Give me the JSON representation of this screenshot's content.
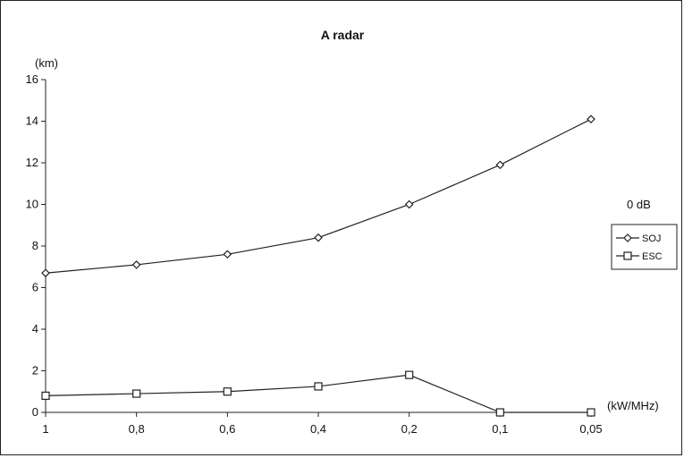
{
  "chart_data": {
    "type": "line",
    "title": "A radar",
    "ylabel": "(km)",
    "xlabel": "(kW/MHz)",
    "annotation": "0 dB",
    "categories": [
      "1",
      "0,8",
      "0,6",
      "0,4",
      "0,2",
      "0,1",
      "0,05"
    ],
    "ylim": [
      0,
      16
    ],
    "yticks": [
      "0",
      "2",
      "4",
      "6",
      "8",
      "10",
      "12",
      "14",
      "16"
    ],
    "grid": false,
    "legend_position": "right",
    "series": [
      {
        "name": "SOJ",
        "marker": "diamond",
        "values": [
          6.7,
          7.1,
          7.6,
          8.4,
          10.0,
          11.9,
          14.1
        ]
      },
      {
        "name": "ESC",
        "marker": "square",
        "values": [
          0.8,
          0.9,
          1.0,
          1.25,
          1.8,
          0.0,
          0.0
        ]
      }
    ],
    "line_color": "#222222"
  }
}
